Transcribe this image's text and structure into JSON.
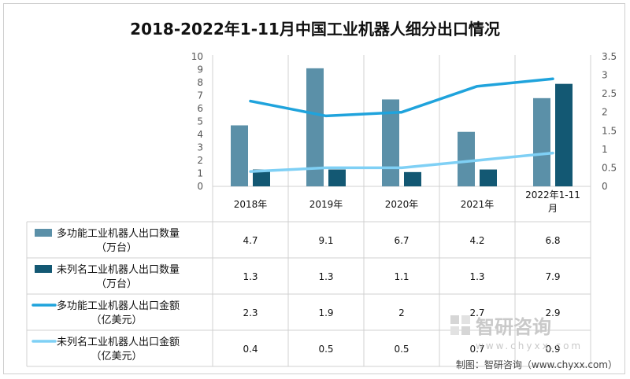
{
  "chart_data": {
    "type": "bar",
    "title": "2018-2022年1-11月中国工业机器人细分出口情况",
    "categories": [
      "2018年",
      "2019年",
      "2020年",
      "2021年",
      "2022年1-11月"
    ],
    "y_left": {
      "ticks": [
        "0",
        "1",
        "2",
        "3",
        "4",
        "5",
        "6",
        "7",
        "8",
        "9",
        "10"
      ],
      "ylim": [
        0,
        10
      ]
    },
    "y_right": {
      "ticks": [
        "0",
        "0.5",
        "1",
        "1.5",
        "2",
        "2.5",
        "3",
        "3.5"
      ],
      "ylim": [
        0,
        3.5
      ]
    },
    "series": [
      {
        "name": "多功能工业机器人出口数量",
        "unit": "（万台）",
        "kind": "bar",
        "axis": "left",
        "color": "#5b90a8",
        "values": [
          4.7,
          9.1,
          6.7,
          4.2,
          6.8
        ],
        "value_labels": [
          "4.7",
          "9.1",
          "6.7",
          "4.2",
          "6.8"
        ]
      },
      {
        "name": "未列名工业机器人出口数量",
        "unit": "（万台）",
        "kind": "bar",
        "axis": "left",
        "color": "#135873",
        "values": [
          1.3,
          1.3,
          1.1,
          1.3,
          7.9
        ],
        "value_labels": [
          "1.3",
          "1.3",
          "1.1",
          "1.3",
          "7.9"
        ]
      },
      {
        "name": "多功能工业机器人出口金额",
        "unit": "（亿美元）",
        "kind": "line",
        "axis": "right",
        "color": "#1fa3dc",
        "values": [
          2.3,
          1.9,
          2.0,
          2.7,
          2.9
        ],
        "value_labels": [
          "2.3",
          "1.9",
          "2",
          "2.7",
          "2.9"
        ]
      },
      {
        "name": "未列名工业机器人出口金额",
        "unit": "（亿美元）",
        "kind": "line",
        "axis": "right",
        "color": "#7fd0f5",
        "values": [
          0.4,
          0.5,
          0.5,
          0.7,
          0.9
        ],
        "value_labels": [
          "0.4",
          "0.5",
          "0.5",
          "0.7",
          "0.9"
        ]
      }
    ]
  },
  "watermark": {
    "name": "智研咨询",
    "url": "www.chyxx.com"
  },
  "credit": "制图：智研咨询（www.chyxx.com）"
}
